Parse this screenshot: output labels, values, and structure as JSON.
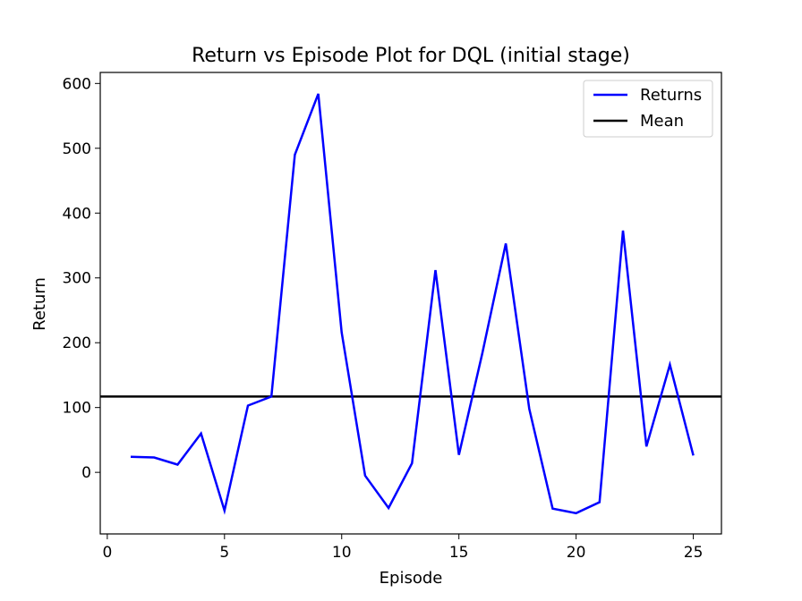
{
  "chart_data": {
    "type": "line",
    "title": "Return vs Episode Plot for DQL (initial stage)",
    "xlabel": "Episode",
    "ylabel": "Return",
    "xlim": [
      -0.3,
      26.2
    ],
    "ylim": [
      -95,
      617
    ],
    "xticks": [
      0,
      5,
      10,
      15,
      20,
      25
    ],
    "yticks": [
      0,
      100,
      200,
      300,
      400,
      500,
      600
    ],
    "grid": false,
    "legend_position": "top-right",
    "series": [
      {
        "name": "Returns",
        "color": "#0000ff",
        "x": [
          1,
          2,
          3,
          4,
          5,
          6,
          7,
          8,
          9,
          10,
          11,
          12,
          13,
          14,
          15,
          16,
          17,
          18,
          19,
          20,
          21,
          22,
          23,
          24,
          25
        ],
        "values": [
          24,
          23,
          12,
          60,
          -59,
          103,
          117,
          490,
          584,
          216,
          -5,
          -55,
          14,
          312,
          27,
          184,
          353,
          98,
          -56,
          -63,
          -46,
          373,
          40,
          166,
          26
        ]
      }
    ],
    "reference_lines": [
      {
        "name": "Mean",
        "color": "#000000",
        "y": 117
      }
    ]
  }
}
